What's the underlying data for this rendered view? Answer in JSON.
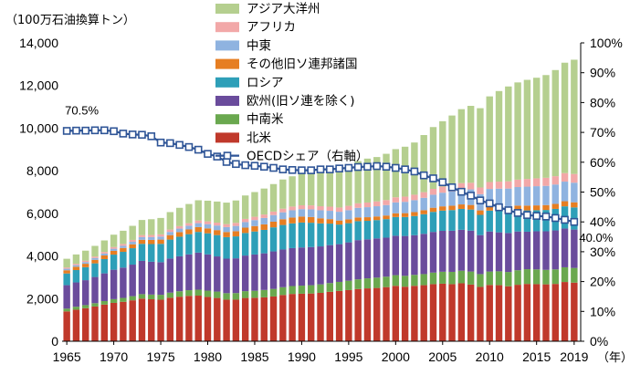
{
  "chart_data": {
    "type": "bar",
    "stacked": true,
    "ylabel": "（100万石油換算トン）",
    "y2_label": "",
    "x_unit_label": "（年）",
    "ylim": [
      0,
      14000
    ],
    "y_ticks": [
      "0",
      "2,000",
      "4,000",
      "6,000",
      "8,000",
      "10,000",
      "12,000",
      "14,000"
    ],
    "y2lim": [
      0,
      100
    ],
    "y2_ticks": [
      "0%",
      "10%",
      "20%",
      "30%",
      "40%",
      "50%",
      "60%",
      "70%",
      "80%",
      "90%",
      "100%"
    ],
    "x_ticks": [
      "1965",
      "1970",
      "1975",
      "1980",
      "1985",
      "1990",
      "1995",
      "2000",
      "2005",
      "2010",
      "2015",
      "2019"
    ],
    "categories": [
      1965,
      1966,
      1967,
      1968,
      1969,
      1970,
      1971,
      1972,
      1973,
      1974,
      1975,
      1976,
      1977,
      1978,
      1979,
      1980,
      1981,
      1982,
      1983,
      1984,
      1985,
      1986,
      1987,
      1988,
      1989,
      1990,
      1991,
      1992,
      1993,
      1994,
      1995,
      1996,
      1997,
      1998,
      1999,
      2000,
      2001,
      2002,
      2003,
      2004,
      2005,
      2006,
      2007,
      2008,
      2009,
      2010,
      2011,
      2012,
      2013,
      2014,
      2015,
      2016,
      2017,
      2018,
      2019
    ],
    "series": [
      {
        "name": "北米",
        "color": "#c0392b",
        "values": [
          1400,
          1480,
          1550,
          1630,
          1720,
          1800,
          1850,
          1920,
          2000,
          1970,
          1950,
          2040,
          2090,
          2130,
          2140,
          2080,
          2030,
          1950,
          1950,
          2030,
          2040,
          2060,
          2100,
          2170,
          2220,
          2230,
          2240,
          2270,
          2320,
          2360,
          2400,
          2450,
          2480,
          2500,
          2540,
          2600,
          2560,
          2600,
          2630,
          2680,
          2700,
          2680,
          2720,
          2660,
          2550,
          2640,
          2630,
          2580,
          2650,
          2690,
          2680,
          2670,
          2690,
          2780,
          2750
        ],
        "label_color": "#c0392b"
      },
      {
        "name": "中南米",
        "color": "#6aa84f",
        "values": [
          130,
          140,
          145,
          155,
          165,
          175,
          185,
          195,
          210,
          220,
          230,
          240,
          255,
          265,
          280,
          295,
          300,
          305,
          310,
          320,
          330,
          345,
          355,
          365,
          370,
          380,
          390,
          400,
          410,
          425,
          440,
          455,
          470,
          485,
          490,
          500,
          510,
          515,
          520,
          540,
          560,
          575,
          590,
          610,
          600,
          630,
          650,
          670,
          680,
          690,
          690,
          680,
          680,
          690,
          690
        ]
      },
      {
        "name": "欧州(旧ソ連を除く)",
        "color": "#6a4c9c",
        "values": [
          1100,
          1140,
          1170,
          1230,
          1300,
          1380,
          1420,
          1480,
          1560,
          1540,
          1530,
          1600,
          1640,
          1680,
          1740,
          1700,
          1650,
          1620,
          1630,
          1670,
          1700,
          1720,
          1760,
          1770,
          1780,
          1790,
          1790,
          1780,
          1780,
          1770,
          1800,
          1840,
          1830,
          1840,
          1830,
          1850,
          1870,
          1860,
          1890,
          1910,
          1920,
          1930,
          1920,
          1920,
          1830,
          1880,
          1830,
          1830,
          1820,
          1760,
          1790,
          1810,
          1830,
          1820,
          1800
        ]
      },
      {
        "name": "ロシア",
        "color": "#2e9fb8",
        "values": [
          550,
          580,
          610,
          640,
          670,
          710,
          740,
          770,
          800,
          830,
          860,
          890,
          920,
          950,
          970,
          990,
          1000,
          1010,
          1030,
          1060,
          1080,
          1100,
          1130,
          1150,
          1160,
          1170,
          1140,
          1080,
          1010,
          920,
          900,
          890,
          870,
          860,
          870,
          880,
          890,
          900,
          920,
          940,
          950,
          970,
          980,
          990,
          950,
          980,
          1010,
          1010,
          990,
          1000,
          990,
          1000,
          1010,
          1040,
          1040
        ]
      },
      {
        "name": "その他旧ソ連邦諸国",
        "color": "#e67e22",
        "values": [
          150,
          155,
          160,
          165,
          170,
          175,
          180,
          185,
          190,
          195,
          200,
          210,
          215,
          220,
          225,
          230,
          235,
          240,
          245,
          250,
          255,
          260,
          265,
          270,
          275,
          280,
          270,
          240,
          210,
          190,
          180,
          175,
          170,
          170,
          170,
          175,
          180,
          185,
          190,
          195,
          200,
          205,
          210,
          215,
          210,
          215,
          220,
          225,
          225,
          225,
          225,
          230,
          235,
          240,
          240
        ]
      },
      {
        "name": "中東",
        "color": "#8fb3e0",
        "values": [
          70,
          75,
          80,
          85,
          90,
          100,
          105,
          115,
          125,
          130,
          140,
          150,
          165,
          175,
          185,
          200,
          215,
          230,
          245,
          260,
          280,
          300,
          310,
          325,
          340,
          350,
          360,
          375,
          390,
          410,
          430,
          450,
          470,
          480,
          490,
          510,
          530,
          560,
          580,
          610,
          640,
          670,
          700,
          730,
          760,
          800,
          820,
          850,
          870,
          890,
          900,
          900,
          910,
          920,
          920
        ]
      },
      {
        "name": "アフリカ",
        "color": "#f2a8a8",
        "values": [
          60,
          63,
          66,
          70,
          75,
          80,
          85,
          90,
          95,
          100,
          105,
          110,
          115,
          120,
          125,
          130,
          135,
          140,
          145,
          150,
          155,
          160,
          165,
          170,
          175,
          180,
          185,
          190,
          195,
          200,
          205,
          212,
          220,
          228,
          235,
          240,
          248,
          255,
          265,
          275,
          285,
          292,
          300,
          310,
          315,
          325,
          330,
          340,
          350,
          360,
          370,
          380,
          390,
          400,
          410
        ]
      },
      {
        "name": "アジア大洋州",
        "color": "#b5cf8f",
        "values": [
          410,
          440,
          470,
          500,
          540,
          580,
          620,
          660,
          710,
          740,
          770,
          820,
          860,
          900,
          950,
          970,
          990,
          1010,
          1050,
          1100,
          1160,
          1220,
          1290,
          1370,
          1420,
          1480,
          1550,
          1600,
          1680,
          1770,
          1880,
          1980,
          2060,
          2080,
          2170,
          2260,
          2340,
          2450,
          2680,
          2900,
          3070,
          3270,
          3470,
          3610,
          3720,
          4020,
          4250,
          4450,
          4560,
          4650,
          4720,
          4820,
          4980,
          5180,
          5360
        ]
      }
    ],
    "line": {
      "name": "OECDシェア（右軸）",
      "axis": "right",
      "color": "#2f5597",
      "values": [
        70.5,
        70.6,
        70.6,
        70.7,
        70.7,
        70.4,
        69.6,
        69.3,
        69.2,
        68.7,
        66.6,
        66.4,
        65.8,
        65.1,
        64.2,
        62.8,
        61.9,
        60.1,
        59.4,
        59.0,
        58.8,
        58.5,
        58.1,
        57.6,
        57.4,
        57.3,
        57.3,
        57.6,
        57.6,
        57.9,
        58.1,
        58.4,
        58.5,
        58.7,
        58.5,
        58.1,
        57.6,
        56.9,
        55.6,
        54.6,
        53.3,
        51.6,
        50.1,
        48.8,
        47.2,
        46.2,
        44.9,
        43.9,
        43.0,
        42.3,
        42.0,
        41.8,
        41.3,
        40.7,
        40.0
      ]
    },
    "annotations": [
      {
        "text": "70.5%",
        "year": 1965
      },
      {
        "text": "40.0%",
        "year": 2019
      }
    ],
    "legend": {
      "placement": "top-center"
    }
  }
}
